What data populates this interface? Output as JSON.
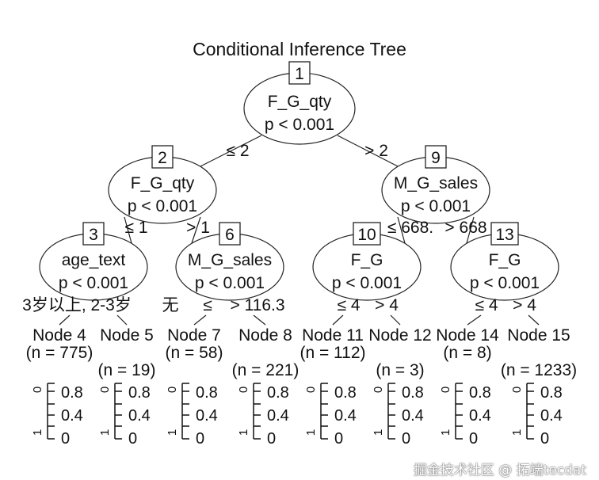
{
  "title": "Conditional Inference Tree",
  "inner_nodes": [
    {
      "id": "1",
      "variable": "F_G_qty",
      "p": "p < 0.001"
    },
    {
      "id": "2",
      "variable": "F_G_qty",
      "p": "p < 0.001"
    },
    {
      "id": "9",
      "variable": "M_G_sales",
      "p": "p < 0.001"
    },
    {
      "id": "3",
      "variable": "age_text",
      "p": "p < 0.001"
    },
    {
      "id": "6",
      "variable": "M_G_sales",
      "p": "p < 0.001"
    },
    {
      "id": "10",
      "variable": "F_G",
      "p": "p < 0.001"
    },
    {
      "id": "13",
      "variable": "F_G",
      "p": "p < 0.001"
    }
  ],
  "edge_labels": [
    "≤ 2",
    "> 2",
    "≤ 1",
    "> 1",
    "≤ 668.",
    "> 668",
    "3岁以上, 2-3岁",
    "无",
    "≤",
    "> 116.3",
    "≤ 4",
    "> 4",
    "≤ 4",
    "> 4"
  ],
  "terminal_nodes": [
    {
      "label": "Node 4 (n = 775)"
    },
    {
      "label": "Node 5 (n = 19)"
    },
    {
      "label": "Node 7 (n = 58)"
    },
    {
      "label": "Node 8 (n = 221)"
    },
    {
      "label": "Node 11 (n = 112)"
    },
    {
      "label": "Node 12 (n = 3)"
    },
    {
      "label": "Node 14 (n = 8)"
    },
    {
      "label": "Node 15 (n = 1233)"
    }
  ],
  "terminal_axis_ticks": [
    "0.8",
    "0.4",
    "0"
  ],
  "class_labels": [
    "0",
    "1"
  ],
  "watermark": "掘金技术社区 @ 拓端tecdat"
}
